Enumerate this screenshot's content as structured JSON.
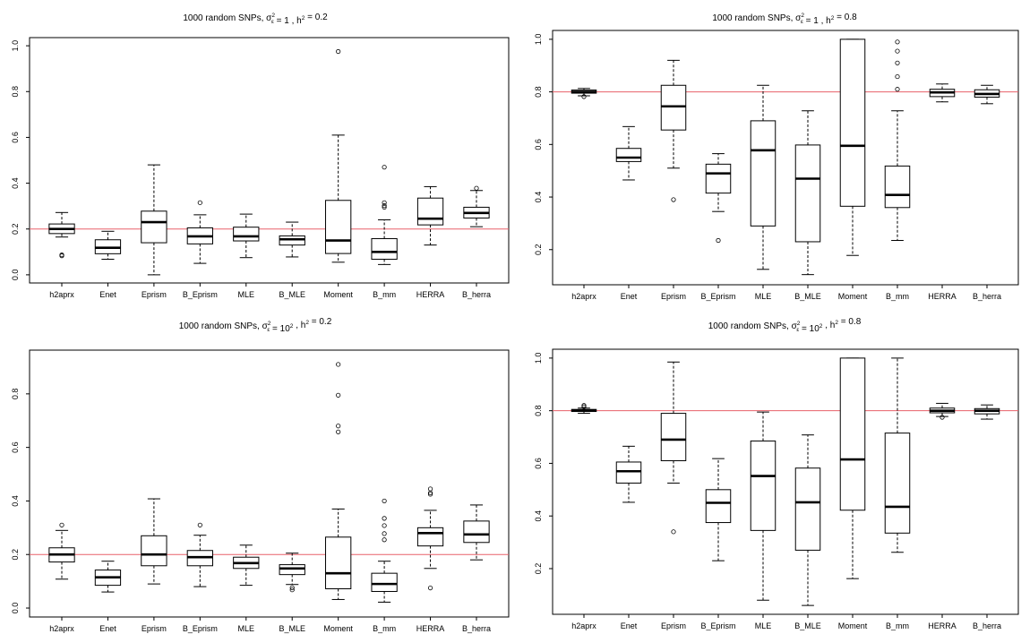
{
  "chart_data": [
    {
      "type": "box",
      "title": {
        "prefix": "1000 random SNPs, ",
        "sigma": "σ",
        "sigma_sub": "ε",
        "sigma_sup": "2",
        "mid1": " = ",
        "sigma_value": "1",
        "sep": " , ",
        "h": "h",
        "h_sup": "2",
        "mid2": " = ",
        "h_value": "0.2"
      },
      "categories": [
        "h2aprx",
        "Enet",
        "Eprism",
        "B_Eprism",
        "MLE",
        "B_MLE",
        "Moment",
        "B_mm",
        "HERRA",
        "B_herra"
      ],
      "ylim": [
        -0.02,
        1.02
      ],
      "yticks": [
        "0.0",
        "0.2",
        "0.4",
        "0.6",
        "0.8",
        "1.0"
      ],
      "ytick_values": [
        0,
        0.2,
        0.4,
        0.6,
        0.8,
        1.0
      ],
      "reference_line": 0.2,
      "reference_color": "#e8606a",
      "boxes": [
        {
          "min": 0.165,
          "q1": 0.18,
          "median": 0.2,
          "q3": 0.222,
          "max": 0.272,
          "outliers": [
            0.083,
            0.087
          ]
        },
        {
          "min": 0.068,
          "q1": 0.092,
          "median": 0.118,
          "q3": 0.153,
          "max": 0.19,
          "outliers": []
        },
        {
          "min": 0.0,
          "q1": 0.14,
          "median": 0.23,
          "q3": 0.278,
          "max": 0.48,
          "outliers": []
        },
        {
          "min": 0.05,
          "q1": 0.135,
          "median": 0.168,
          "q3": 0.205,
          "max": 0.262,
          "outliers": [
            0.315
          ]
        },
        {
          "min": 0.075,
          "q1": 0.148,
          "median": 0.168,
          "q3": 0.208,
          "max": 0.265,
          "outliers": []
        },
        {
          "min": 0.078,
          "q1": 0.13,
          "median": 0.155,
          "q3": 0.17,
          "max": 0.23,
          "outliers": []
        },
        {
          "min": 0.055,
          "q1": 0.093,
          "median": 0.15,
          "q3": 0.325,
          "max": 0.61,
          "outliers": [
            0.975
          ]
        },
        {
          "min": 0.045,
          "q1": 0.068,
          "median": 0.1,
          "q3": 0.158,
          "max": 0.24,
          "outliers": [
            0.295,
            0.302,
            0.315,
            0.47
          ]
        },
        {
          "min": 0.13,
          "q1": 0.218,
          "median": 0.245,
          "q3": 0.335,
          "max": 0.385,
          "outliers": []
        },
        {
          "min": 0.21,
          "q1": 0.248,
          "median": 0.27,
          "q3": 0.295,
          "max": 0.368,
          "outliers": [
            0.378
          ]
        }
      ]
    },
    {
      "type": "box",
      "title": {
        "prefix": "1000 random SNPs, ",
        "sigma": "σ",
        "sigma_sub": "ε",
        "sigma_sup": "2",
        "mid1": " = ",
        "sigma_value": "1",
        "sep": " , ",
        "h": "h",
        "h_sup": "2",
        "mid2": " = ",
        "h_value": "0.8"
      },
      "categories": [
        "h2aprx",
        "Enet",
        "Eprism",
        "B_Eprism",
        "MLE",
        "B_MLE",
        "Moment",
        "B_mm",
        "HERRA",
        "B_herra"
      ],
      "ylim": [
        0.08,
        1.02
      ],
      "yticks": [
        "0.2",
        "0.4",
        "0.6",
        "0.8",
        "1.0"
      ],
      "ytick_values": [
        0.2,
        0.4,
        0.6,
        0.8,
        1.0
      ],
      "reference_line": 0.8,
      "reference_color": "#e8606a",
      "boxes": [
        {
          "min": 0.785,
          "q1": 0.795,
          "median": 0.8,
          "q3": 0.807,
          "max": 0.813,
          "outliers": [
            0.782
          ]
        },
        {
          "min": 0.465,
          "q1": 0.535,
          "median": 0.55,
          "q3": 0.585,
          "max": 0.668,
          "outliers": []
        },
        {
          "min": 0.51,
          "q1": 0.655,
          "median": 0.745,
          "q3": 0.825,
          "max": 0.92,
          "outliers": [
            0.39
          ]
        },
        {
          "min": 0.345,
          "q1": 0.415,
          "median": 0.49,
          "q3": 0.525,
          "max": 0.565,
          "outliers": [
            0.235
          ]
        },
        {
          "min": 0.125,
          "q1": 0.29,
          "median": 0.578,
          "q3": 0.69,
          "max": 0.825,
          "outliers": []
        },
        {
          "min": 0.105,
          "q1": 0.23,
          "median": 0.47,
          "q3": 0.598,
          "max": 0.728,
          "outliers": []
        },
        {
          "min": 0.178,
          "q1": 0.365,
          "median": 0.595,
          "q3": 1.0,
          "max": 1.0,
          "outliers": []
        },
        {
          "min": 0.235,
          "q1": 0.36,
          "median": 0.408,
          "q3": 0.518,
          "max": 0.728,
          "outliers": [
            0.81,
            0.858,
            0.91,
            0.955,
            0.99
          ]
        },
        {
          "min": 0.762,
          "q1": 0.782,
          "median": 0.798,
          "q3": 0.81,
          "max": 0.83,
          "outliers": []
        },
        {
          "min": 0.755,
          "q1": 0.78,
          "median": 0.792,
          "q3": 0.808,
          "max": 0.825,
          "outliers": []
        }
      ]
    },
    {
      "type": "box",
      "title": {
        "prefix": "1000 random SNPs, ",
        "sigma": "σ",
        "sigma_sub": "ε",
        "sigma_sup": "2",
        "mid1": " = ",
        "sigma_value": "10",
        "sigma_value_sup": "2",
        "sep": " , ",
        "h": "h",
        "h_sup": "2",
        "mid2": " = ",
        "h_value": "0.2"
      },
      "categories": [
        "h2aprx",
        "Enet",
        "Eprism",
        "B_Eprism",
        "MLE",
        "B_MLE",
        "Moment",
        "B_mm",
        "HERRA",
        "B_herra"
      ],
      "ylim": [
        -0.02,
        0.95
      ],
      "yticks": [
        "0.0",
        "0.2",
        "0.4",
        "0.6",
        "0.8"
      ],
      "ytick_values": [
        0,
        0.2,
        0.4,
        0.6,
        0.8
      ],
      "reference_line": 0.2,
      "reference_color": "#e8606a",
      "boxes": [
        {
          "min": 0.108,
          "q1": 0.172,
          "median": 0.2,
          "q3": 0.225,
          "max": 0.29,
          "outliers": [
            0.31
          ]
        },
        {
          "min": 0.06,
          "q1": 0.085,
          "median": 0.115,
          "q3": 0.142,
          "max": 0.175,
          "outliers": []
        },
        {
          "min": 0.09,
          "q1": 0.158,
          "median": 0.2,
          "q3": 0.27,
          "max": 0.408,
          "outliers": []
        },
        {
          "min": 0.08,
          "q1": 0.158,
          "median": 0.19,
          "q3": 0.215,
          "max": 0.272,
          "outliers": [
            0.31
          ]
        },
        {
          "min": 0.085,
          "q1": 0.148,
          "median": 0.168,
          "q3": 0.19,
          "max": 0.235,
          "outliers": []
        },
        {
          "min": 0.088,
          "q1": 0.125,
          "median": 0.148,
          "q3": 0.162,
          "max": 0.205,
          "outliers": [
            0.068,
            0.076
          ]
        },
        {
          "min": 0.032,
          "q1": 0.072,
          "median": 0.13,
          "q3": 0.265,
          "max": 0.37,
          "outliers": [
            0.658,
            0.68,
            0.795,
            0.91
          ]
        },
        {
          "min": 0.022,
          "q1": 0.062,
          "median": 0.09,
          "q3": 0.13,
          "max": 0.175,
          "outliers": [
            0.255,
            0.278,
            0.308,
            0.335,
            0.4
          ]
        },
        {
          "min": 0.148,
          "q1": 0.232,
          "median": 0.28,
          "q3": 0.3,
          "max": 0.365,
          "outliers": [
            0.075,
            0.425,
            0.43,
            0.445
          ]
        },
        {
          "min": 0.18,
          "q1": 0.245,
          "median": 0.275,
          "q3": 0.325,
          "max": 0.385,
          "outliers": []
        }
      ]
    },
    {
      "type": "box",
      "title": {
        "prefix": "1000 random SNPs, ",
        "sigma": "σ",
        "sigma_sub": "ε",
        "sigma_sup": "2",
        "mid1": " = ",
        "sigma_value": "10",
        "sigma_value_sup": "2",
        "sep": " , ",
        "h": "h",
        "h_sup": "2",
        "mid2": " = ",
        "h_value": "0.8"
      },
      "categories": [
        "h2aprx",
        "Enet",
        "Eprism",
        "B_Eprism",
        "MLE",
        "B_MLE",
        "Moment",
        "B_mm",
        "HERRA",
        "B_herra"
      ],
      "ylim": [
        0.04,
        1.02
      ],
      "yticks": [
        "0.2",
        "0.4",
        "0.6",
        "0.8",
        "1.0"
      ],
      "ytick_values": [
        0.2,
        0.4,
        0.6,
        0.8,
        1.0
      ],
      "reference_line": 0.8,
      "reference_color": "#e8606a",
      "boxes": [
        {
          "min": 0.79,
          "q1": 0.797,
          "median": 0.8,
          "q3": 0.805,
          "max": 0.81,
          "outliers": [
            0.815,
            0.82
          ]
        },
        {
          "min": 0.452,
          "q1": 0.525,
          "median": 0.57,
          "q3": 0.605,
          "max": 0.665,
          "outliers": []
        },
        {
          "min": 0.525,
          "q1": 0.61,
          "median": 0.69,
          "q3": 0.79,
          "max": 0.985,
          "outliers": [
            0.34
          ]
        },
        {
          "min": 0.23,
          "q1": 0.375,
          "median": 0.45,
          "q3": 0.5,
          "max": 0.618,
          "outliers": []
        },
        {
          "min": 0.08,
          "q1": 0.345,
          "median": 0.552,
          "q3": 0.685,
          "max": 0.795,
          "outliers": []
        },
        {
          "min": 0.06,
          "q1": 0.27,
          "median": 0.452,
          "q3": 0.582,
          "max": 0.708,
          "outliers": []
        },
        {
          "min": 0.162,
          "q1": 0.422,
          "median": 0.615,
          "q3": 1.0,
          "max": 1.0,
          "outliers": []
        },
        {
          "min": 0.262,
          "q1": 0.335,
          "median": 0.435,
          "q3": 0.715,
          "max": 1.0,
          "outliers": []
        },
        {
          "min": 0.778,
          "q1": 0.792,
          "median": 0.8,
          "q3": 0.81,
          "max": 0.828,
          "outliers": [
            0.775
          ]
        },
        {
          "min": 0.768,
          "q1": 0.788,
          "median": 0.8,
          "q3": 0.808,
          "max": 0.822,
          "outliers": []
        }
      ]
    }
  ]
}
